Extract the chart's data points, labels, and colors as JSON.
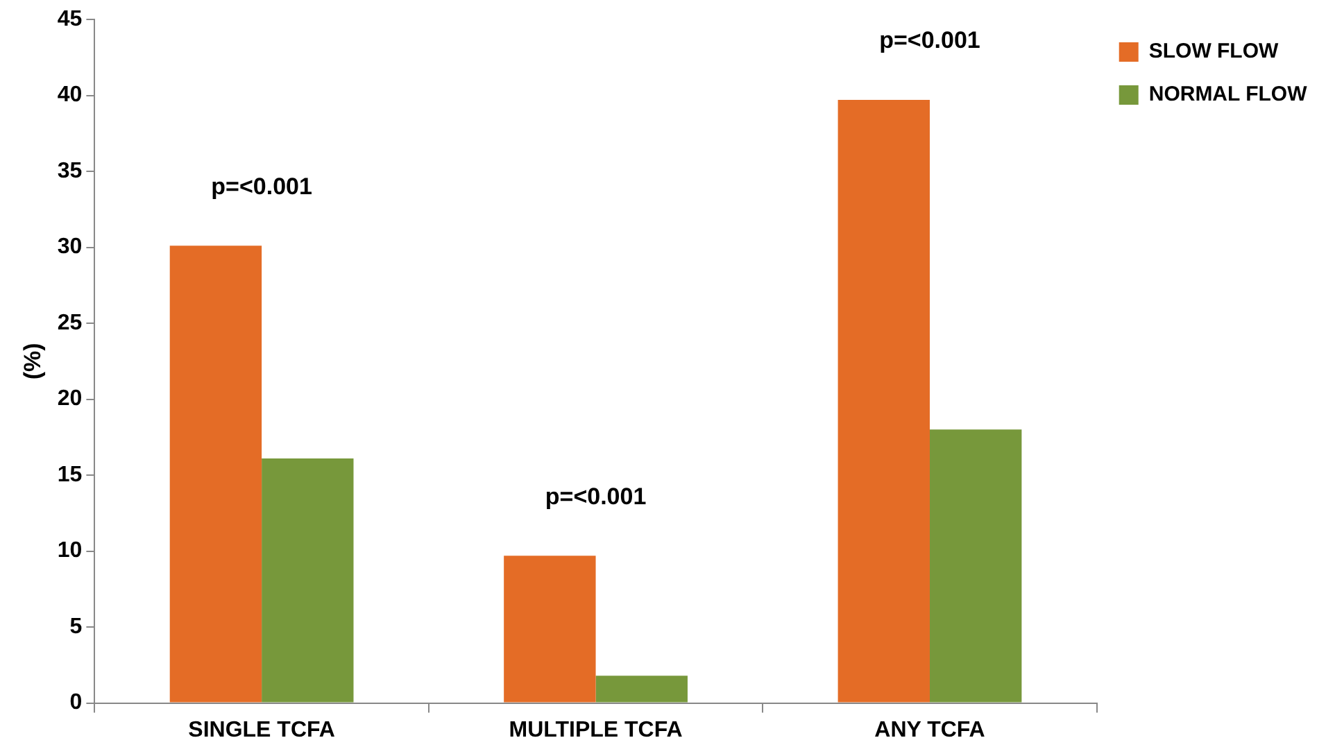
{
  "chart_data": {
    "type": "bar",
    "ylabel": "(%)",
    "categories": [
      "SINGLE TCFA",
      "MULTIPLE TCFA",
      "ANY TCFA"
    ],
    "series": [
      {
        "name": "SLOW FLOW",
        "color": "#e46c26",
        "values": [
          30.1,
          9.7,
          39.7
        ]
      },
      {
        "name": "NORMAL FLOW",
        "color": "#77983b",
        "values": [
          16.1,
          1.8,
          18.0
        ]
      }
    ],
    "ylim": [
      0,
      45
    ],
    "yticks": [
      0,
      5,
      10,
      15,
      20,
      25,
      30,
      35,
      40,
      45
    ],
    "grid": false,
    "legend": "top right",
    "annotations": [
      "p=<0.001",
      "p=<0.001",
      "p=<0.001"
    ]
  }
}
